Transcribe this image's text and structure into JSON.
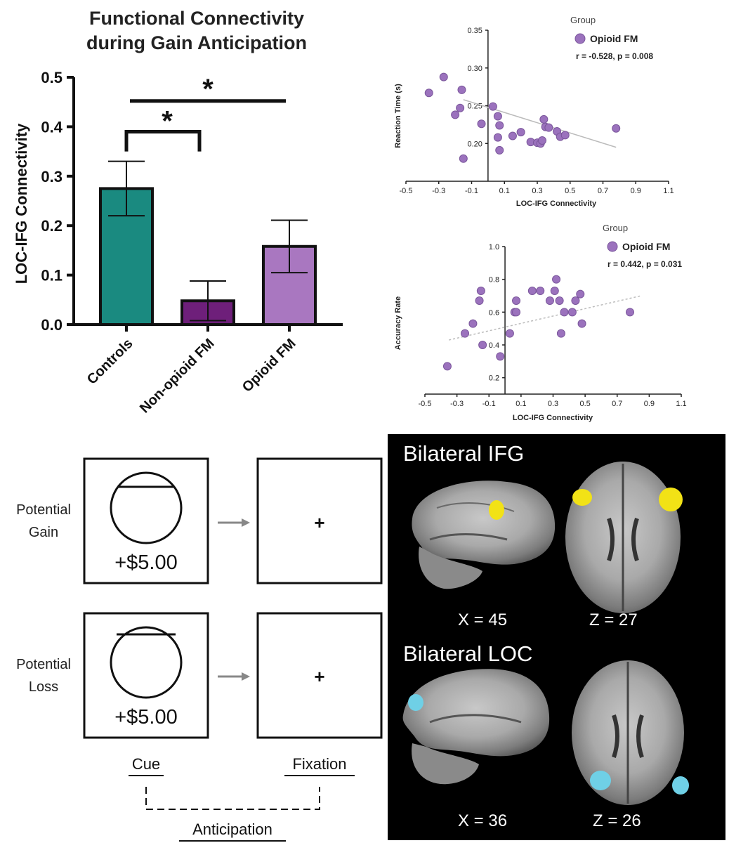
{
  "bar_chart": {
    "title_line1": "Functional Connectivity",
    "title_line2": "during Gain Anticipation",
    "ylabel": "LOC-IFG Connectivity",
    "y_ticks": [
      "0.0",
      "0.1",
      "0.2",
      "0.3",
      "0.4",
      "0.5"
    ],
    "significance_marker": "*"
  },
  "scatter_rt": {
    "legend_title": "Group",
    "legend_label": "Opioid FM",
    "stat": "r = -0.528, p = 0.008",
    "xlabel": "LOC-IFG Connectivity",
    "ylabel": "Reaction Time (s)",
    "x_ticks": [
      "-0.5",
      "-0.3",
      "-0.1",
      "0.1",
      "0.3",
      "0.5",
      "0.7",
      "0.9",
      "1.1"
    ],
    "y_ticks": [
      "0.20",
      "0.25",
      "0.30",
      "0.35"
    ]
  },
  "scatter_acc": {
    "legend_title": "Group",
    "legend_label": "Opioid FM",
    "stat": "r = 0.442, p = 0.031",
    "xlabel": "LOC-IFG Connectivity",
    "ylabel": "Accuracy Rate",
    "x_ticks": [
      "-0.5",
      "-0.3",
      "-0.1",
      "0.1",
      "0.3",
      "0.5",
      "0.7",
      "0.9",
      "1.1"
    ],
    "y_ticks": [
      "0.2",
      "0.4",
      "0.6",
      "0.8",
      "1.0"
    ]
  },
  "task": {
    "gain_label_1": "Potential",
    "gain_label_2": "Gain",
    "loss_label_1": "Potential",
    "loss_label_2": "Loss",
    "gain_amount": "+$5.00",
    "loss_amount": "+$5.00",
    "fixation_symbol": "+",
    "cue_label": "Cue",
    "fixation_label": "Fixation",
    "anticipation_label": "Anticipation"
  },
  "brain": {
    "ifg_title": "Bilateral IFG",
    "loc_title": "Bilateral LOC",
    "ifg_sag_coord": "X =  45",
    "ifg_ax_coord": "Z =  27",
    "loc_sag_coord": "X =  36",
    "loc_ax_coord": "Z =  26"
  },
  "colors": {
    "controls": "#1a8a80",
    "non_opioid": "#6e1f7a",
    "opioid": "#a977c0",
    "scatter_point": "#9b72bd",
    "ifg_highlight": "#f2e216",
    "loc_highlight": "#6fd0e6"
  },
  "chart_data": [
    {
      "type": "bar",
      "title": "Functional Connectivity during Gain Anticipation",
      "categories": [
        "Controls",
        "Non-opioid FM",
        "Opioid FM"
      ],
      "values": [
        0.275,
        0.048,
        0.158
      ],
      "error": [
        0.055,
        0.04,
        0.053
      ],
      "ylabel": "LOC-IFG Connectivity",
      "xlabel": "",
      "ylim": [
        0,
        0.5
      ],
      "significance": [
        {
          "from": "Controls",
          "to": "Non-opioid FM",
          "label": "*"
        },
        {
          "from": "Controls",
          "to": "Opioid FM",
          "label": "*"
        }
      ]
    },
    {
      "type": "scatter",
      "series": [
        {
          "name": "Opioid FM",
          "x": [
            -0.36,
            -0.27,
            -0.16,
            -0.2,
            -0.17,
            -0.15,
            -0.04,
            0.03,
            0.06,
            0.06,
            0.07,
            0.07,
            0.15,
            0.2,
            0.26,
            0.3,
            0.32,
            0.33,
            0.34,
            0.35,
            0.37,
            0.42,
            0.44,
            0.47,
            0.78
          ],
          "y": [
            0.267,
            0.288,
            0.271,
            0.238,
            0.247,
            0.18,
            0.226,
            0.249,
            0.236,
            0.208,
            0.191,
            0.224,
            0.21,
            0.215,
            0.202,
            0.201,
            0.2,
            0.204,
            0.232,
            0.222,
            0.221,
            0.216,
            0.209,
            0.211,
            0.22
          ]
        }
      ],
      "trendline": {
        "x": [
          -0.15,
          0.78
        ],
        "y": [
          0.258,
          0.195
        ]
      },
      "xlabel": "LOC-IFG Connectivity",
      "ylabel": "Reaction Time (s)",
      "xlim": [
        -0.5,
        1.1
      ],
      "ylim": [
        0.15,
        0.35
      ],
      "legend": "top-right",
      "stat": "r = -0.528, p = 0.008"
    },
    {
      "type": "scatter",
      "series": [
        {
          "name": "Opioid FM",
          "x": [
            -0.36,
            -0.25,
            -0.2,
            -0.16,
            -0.15,
            -0.14,
            -0.03,
            0.03,
            0.06,
            0.07,
            0.07,
            0.17,
            0.22,
            0.28,
            0.31,
            0.32,
            0.34,
            0.35,
            0.37,
            0.42,
            0.44,
            0.47,
            0.48,
            0.78
          ],
          "y": [
            0.27,
            0.47,
            0.53,
            0.67,
            0.73,
            0.4,
            0.33,
            0.47,
            0.6,
            0.67,
            0.6,
            0.73,
            0.73,
            0.67,
            0.73,
            0.8,
            0.67,
            0.47,
            0.6,
            0.6,
            0.67,
            0.71,
            0.53,
            0.6
          ]
        }
      ],
      "trendline": {
        "x": [
          -0.35,
          0.85
        ],
        "y": [
          0.43,
          0.7
        ]
      },
      "xlabel": "LOC-IFG Connectivity",
      "ylabel": "Accuracy Rate",
      "xlim": [
        -0.5,
        1.1
      ],
      "ylim": [
        0.1,
        1.0
      ],
      "legend": "top-right",
      "stat": "r = 0.442, p = 0.031"
    }
  ]
}
